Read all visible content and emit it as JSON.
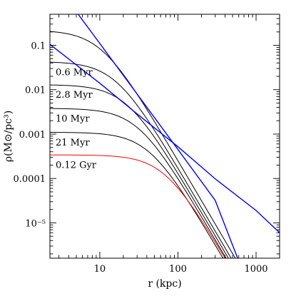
{
  "chart_data": {
    "type": "line",
    "title": "",
    "xlabel": "r (kpc)",
    "ylabel": "ρ(M⊙/pc³)",
    "xscale": "log",
    "yscale": "log",
    "xlim": [
      2.3,
      2000
    ],
    "ylim": [
      1.6e-06,
      0.5
    ],
    "grid": false,
    "legend": "none",
    "x_ticks": [
      {
        "value": 10,
        "label": "10"
      },
      {
        "value": 100,
        "label": "100"
      },
      {
        "value": 1000,
        "label": "1000"
      }
    ],
    "y_ticks": [
      {
        "value": 0.1,
        "label": "0.1"
      },
      {
        "value": 0.01,
        "label": "0.01"
      },
      {
        "value": 0.001,
        "label": "0.001"
      },
      {
        "value": 0.0001,
        "label": "0.0001"
      },
      {
        "value": 1e-05,
        "label": "10⁻⁵"
      }
    ],
    "series": [
      {
        "label": "",
        "color": "#000000",
        "rho0": 0.22,
        "rc": 10.5,
        "points": [
          [
            2.3,
            0.2
          ],
          [
            4,
            0.17
          ],
          [
            6,
            0.135
          ],
          [
            10,
            0.08
          ],
          [
            20,
            0.022
          ],
          [
            40,
            0.0034
          ],
          [
            70,
            0.00065
          ],
          [
            100,
            0.00022
          ],
          [
            150,
            6e-05
          ],
          [
            200,
            2.2e-05
          ],
          [
            250,
            8.5e-06
          ]
        ]
      },
      {
        "label": "0.6 Myr",
        "color": "#000000",
        "rho0": 0.043,
        "rc": 16,
        "points": [
          [
            2.3,
            0.042
          ],
          [
            5,
            0.04
          ],
          [
            10,
            0.032
          ],
          [
            20,
            0.015
          ],
          [
            40,
            0.0033
          ],
          [
            70,
            0.00075
          ],
          [
            100,
            0.00028
          ],
          [
            150,
            8.5e-05
          ],
          [
            200,
            3.3e-05
          ],
          [
            250,
            1.34e-05
          ]
        ]
      },
      {
        "label": "2.8 Myr",
        "color": "#000000",
        "rho0": 0.013,
        "rc": 22,
        "points": [
          [
            2.3,
            0.013
          ],
          [
            5,
            0.0128
          ],
          [
            10,
            0.0115
          ],
          [
            20,
            0.007
          ],
          [
            40,
            0.0022
          ],
          [
            70,
            0.00065
          ],
          [
            100,
            0.00027
          ],
          [
            150,
            9.5e-05
          ],
          [
            200,
            4e-05
          ],
          [
            250,
            1.93e-05
          ]
        ]
      },
      {
        "label": "10 Myr",
        "color": "#000000",
        "rho0": 0.0038,
        "rc": 31,
        "points": [
          [
            2.3,
            0.0038
          ],
          [
            5,
            0.0038
          ],
          [
            10,
            0.0036
          ],
          [
            20,
            0.0027
          ],
          [
            40,
            0.0012
          ],
          [
            70,
            0.00044
          ],
          [
            100,
            0.0002
          ],
          [
            150,
            8.2e-05
          ],
          [
            200,
            3.9e-05
          ],
          [
            250,
            2e-05
          ]
        ]
      },
      {
        "label": "21 Myr",
        "color": "#000000",
        "rho0": 0.0011,
        "rc": 43,
        "points": [
          [
            2.3,
            0.0011
          ],
          [
            5,
            0.0011
          ],
          [
            10,
            0.00108
          ],
          [
            20,
            0.00095
          ],
          [
            40,
            0.00058
          ],
          [
            70,
            0.00027
          ],
          [
            100,
            0.00014
          ],
          [
            150,
            6.5e-05
          ],
          [
            200,
            3.4e-05
          ],
          [
            250,
            1.87e-05
          ]
        ]
      },
      {
        "label": "0.12 Gyr",
        "color": "#ff0000",
        "rho0": 0.00034,
        "rc": 68,
        "points": [
          [
            2.3,
            0.00034
          ],
          [
            5,
            0.00034
          ],
          [
            10,
            0.00034
          ],
          [
            20,
            0.00032
          ],
          [
            40,
            0.00025
          ],
          [
            70,
            0.00015
          ],
          [
            100,
            9.5e-05
          ],
          [
            150,
            5e-05
          ],
          [
            200,
            2.8e-05
          ],
          [
            300,
            1.1e-05
          ],
          [
            400,
            4.9e-06
          ]
        ]
      },
      {
        "label": "",
        "color": "#0000ff",
        "points": [
          [
            2.3,
            3.6
          ],
          [
            10,
            0.11
          ],
          [
            30,
            0.008
          ],
          [
            100,
            0.00045
          ],
          [
            300,
            3.2e-05
          ],
          [
            581,
            1.6e-06
          ]
        ]
      },
      {
        "label": "",
        "color": "#0000ff",
        "points": [
          [
            2.3,
            0.105
          ],
          [
            10,
            0.014
          ],
          [
            30,
            0.00285
          ],
          [
            100,
            0.00052
          ],
          [
            300,
            9.8e-05
          ],
          [
            1000,
            1.9e-05
          ],
          [
            2000,
            6e-06
          ]
        ]
      }
    ]
  }
}
